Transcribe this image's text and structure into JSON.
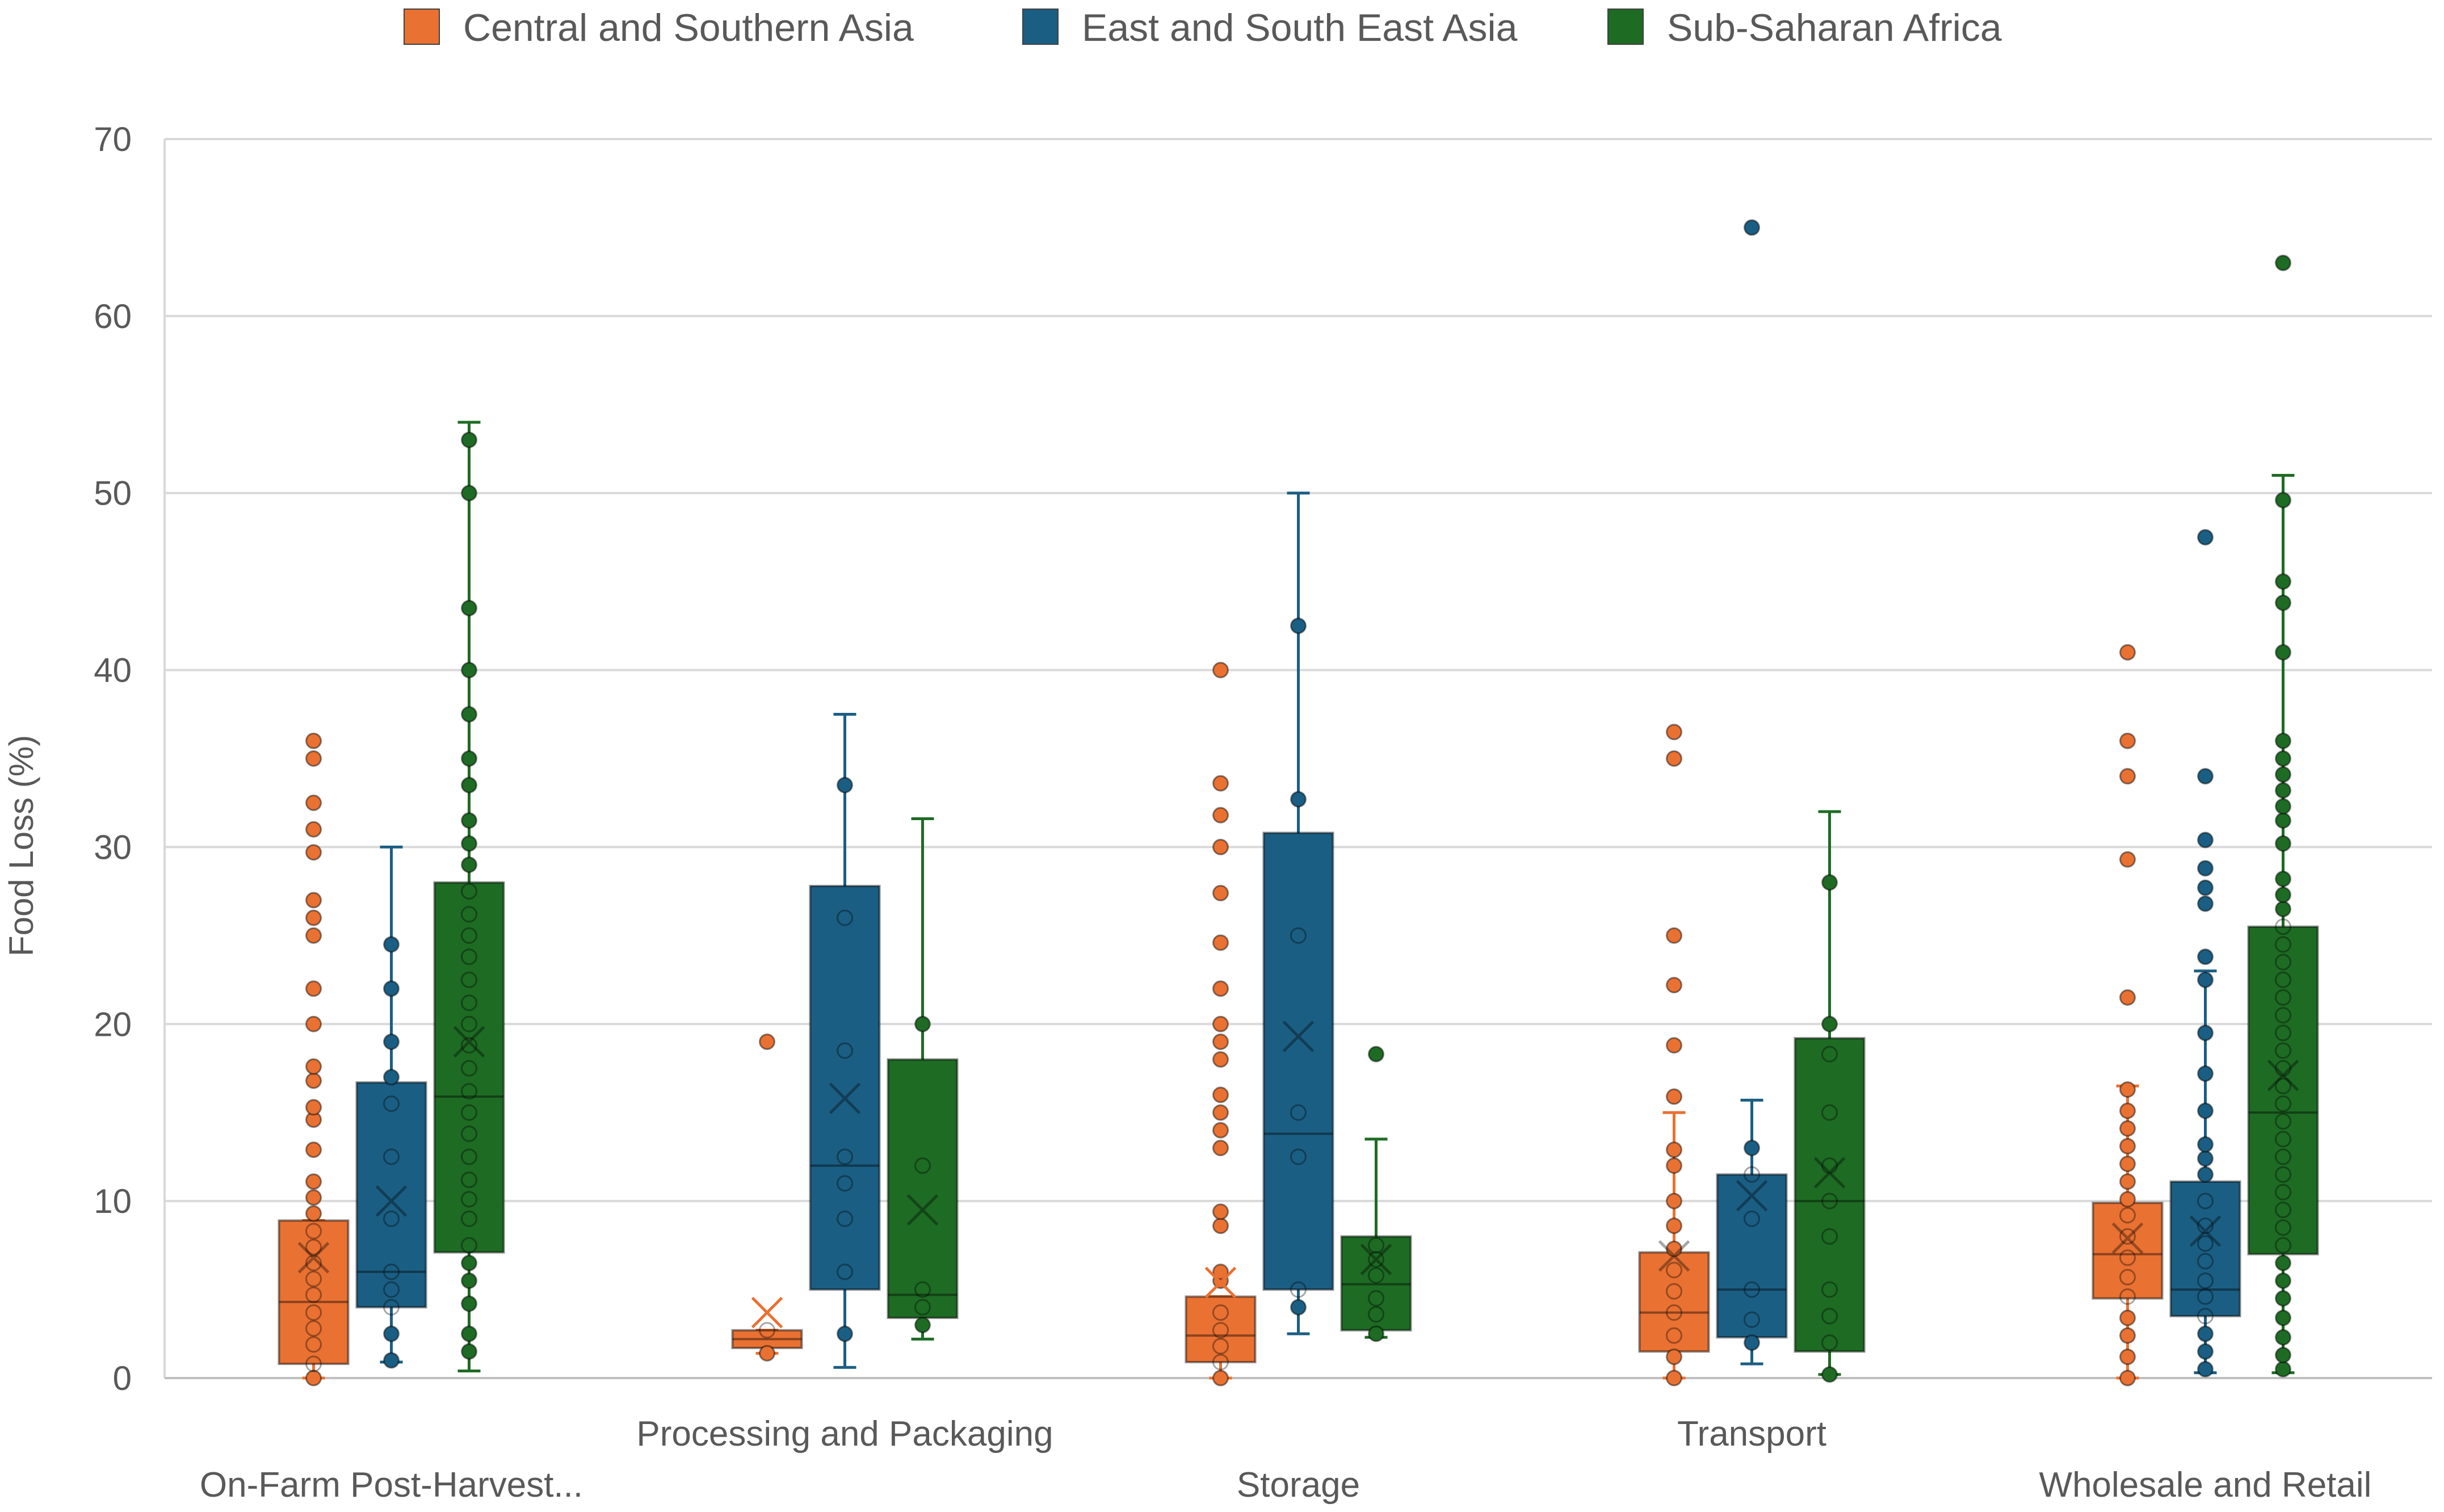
{
  "chart_data": {
    "type": "box",
    "title": "",
    "xlabel": "",
    "ylabel": "Food Loss (%)",
    "ylim": [
      0,
      70
    ],
    "yticks": [
      0,
      10,
      20,
      30,
      40,
      50,
      60,
      70
    ],
    "grid": true,
    "legend_position": "top",
    "categories": [
      "On-Farm Post-Harvest...",
      "Processing and Packaging",
      "Storage",
      "Transport",
      "Wholesale and Retail"
    ],
    "colors": {
      "Central and Southern Asia": "#e97132",
      "East and South East Asia": "#1b5e83",
      "Sub-Saharan Africa": "#1e6b24"
    },
    "series": [
      {
        "name": "Central and Southern Asia",
        "boxes": [
          {
            "min": 0,
            "q1": 0.8,
            "median": 4.3,
            "q3": 8.9,
            "max": 8.9,
            "mean": 6.8,
            "points": [
              0,
              0.8,
              1.9,
              2.8,
              3.7,
              4.7,
              5.6,
              6.5,
              7.4,
              8.3,
              9.3,
              10.2,
              11.1,
              12.9,
              14.6,
              15.3,
              16.8,
              17.6,
              20,
              22,
              25,
              26,
              27,
              29.7,
              31,
              32.5,
              35,
              36
            ]
          },
          {
            "min": 1.4,
            "q1": 1.7,
            "median": 2.2,
            "q3": 2.7,
            "max": 2.7,
            "mean": 3.7,
            "points": [
              1.4,
              2.7,
              19
            ]
          },
          {
            "min": 0,
            "q1": 0.9,
            "median": 2.4,
            "q3": 4.6,
            "max": 4.6,
            "mean": 5.4,
            "points": [
              0,
              0.9,
              1.8,
              2.7,
              3.7,
              5.5,
              6,
              8.6,
              9.4,
              13,
              14,
              15,
              16,
              18,
              19,
              20,
              22,
              24.6,
              27.4,
              30,
              31.8,
              33.6,
              40
            ]
          },
          {
            "min": 0,
            "q1": 1.5,
            "median": 3.7,
            "q3": 7.1,
            "max": 15,
            "mean": 6.9,
            "points": [
              0,
              1.2,
              2.4,
              3.7,
              4.9,
              6.1,
              7.3,
              8.6,
              10,
              12,
              12.9,
              15.9,
              18.8,
              22.2,
              25,
              35,
              36.5
            ]
          },
          {
            "min": 0,
            "q1": 4.5,
            "median": 7,
            "q3": 9.9,
            "max": 16.5,
            "mean": 7.9,
            "points": [
              0,
              1.2,
              2.4,
              3.4,
              4.6,
              5.7,
              6.8,
              8,
              9.2,
              10.1,
              11.1,
              12.1,
              13.1,
              14.1,
              15.1,
              16.3,
              21.5,
              29.3,
              34,
              36,
              41
            ]
          }
        ]
      },
      {
        "name": "East and South East Asia",
        "boxes": [
          {
            "min": 0.9,
            "q1": 4,
            "median": 6,
            "q3": 16.7,
            "max": 30,
            "mean": 10,
            "points": [
              1,
              2.5,
              4,
              5,
              6,
              9,
              12.5,
              15.5,
              17,
              19,
              22,
              24.5
            ]
          },
          {
            "min": 0.6,
            "q1": 5,
            "median": 12,
            "q3": 27.8,
            "max": 37.5,
            "mean": 15.8,
            "points": [
              2.5,
              6,
              9,
              11,
              12.5,
              18.5,
              26,
              33.5
            ]
          },
          {
            "min": 2.5,
            "q1": 5,
            "median": 13.8,
            "q3": 30.8,
            "max": 50,
            "mean": 19.3,
            "points": [
              4,
              5,
              12.5,
              15,
              25,
              32.7,
              42.5
            ]
          },
          {
            "min": 0.8,
            "q1": 2.3,
            "median": 5,
            "q3": 11.5,
            "max": 15.7,
            "mean": 10.3,
            "points": [
              2,
              3.3,
              5,
              9,
              11.5,
              13,
              65
            ]
          },
          {
            "min": 0.3,
            "q1": 3.5,
            "median": 5,
            "q3": 11.1,
            "max": 23,
            "mean": 8.3,
            "points": [
              0.5,
              1.5,
              2.5,
              3.5,
              4.6,
              5.5,
              6.6,
              7.6,
              8.6,
              10,
              11.5,
              12.4,
              13.2,
              15.1,
              17.2,
              19.5,
              22.5,
              23.8,
              26.8,
              27.7,
              28.8,
              30.4,
              34,
              47.5
            ]
          }
        ]
      },
      {
        "name": "Sub-Saharan Africa",
        "boxes": [
          {
            "min": 0.4,
            "q1": 7.1,
            "median": 15.9,
            "q3": 28,
            "max": 54,
            "mean": 19,
            "points": [
              1.5,
              2.5,
              4.2,
              5.5,
              6.5,
              7.5,
              9,
              10.1,
              11.2,
              12.5,
              13.8,
              15,
              16.2,
              17.5,
              18.8,
              20,
              21.2,
              22.5,
              23.8,
              25,
              26.2,
              27.5,
              29,
              30.2,
              31.5,
              33.5,
              35,
              37.5,
              40,
              43.5,
              50,
              53
            ]
          },
          {
            "min": 2.2,
            "q1": 3.4,
            "median": 4.7,
            "q3": 18,
            "max": 31.6,
            "mean": 9.5,
            "points": [
              3,
              4,
              5,
              12,
              20
            ]
          },
          {
            "min": 2.3,
            "q1": 2.7,
            "median": 5.3,
            "q3": 8,
            "max": 13.5,
            "mean": 6.7,
            "points": [
              2.5,
              3.6,
              4.5,
              5.8,
              6.7,
              7.5,
              18.3
            ]
          },
          {
            "min": 0.2,
            "q1": 1.5,
            "median": 10,
            "q3": 19.2,
            "max": 32,
            "mean": 11.6,
            "points": [
              0.2,
              2,
              3.5,
              5,
              8,
              10,
              12,
              15,
              18.3,
              20,
              28
            ]
          },
          {
            "min": 0.3,
            "q1": 7,
            "median": 15,
            "q3": 25.5,
            "max": 51,
            "mean": 17.1,
            "points": [
              0.5,
              1.3,
              2.3,
              3.4,
              4.5,
              5.5,
              6.5,
              7.5,
              8.5,
              9.5,
              10.5,
              11.5,
              12.5,
              13.5,
              14.5,
              15.5,
              16.5,
              17.5,
              18.5,
              19.5,
              20.5,
              21.5,
              22.5,
              23.5,
              24.5,
              25.5,
              26.5,
              27.3,
              28.2,
              30.2,
              31.5,
              32.3,
              33.2,
              34.1,
              35,
              36,
              41,
              43.8,
              45,
              49.6,
              63
            ]
          }
        ]
      }
    ]
  }
}
